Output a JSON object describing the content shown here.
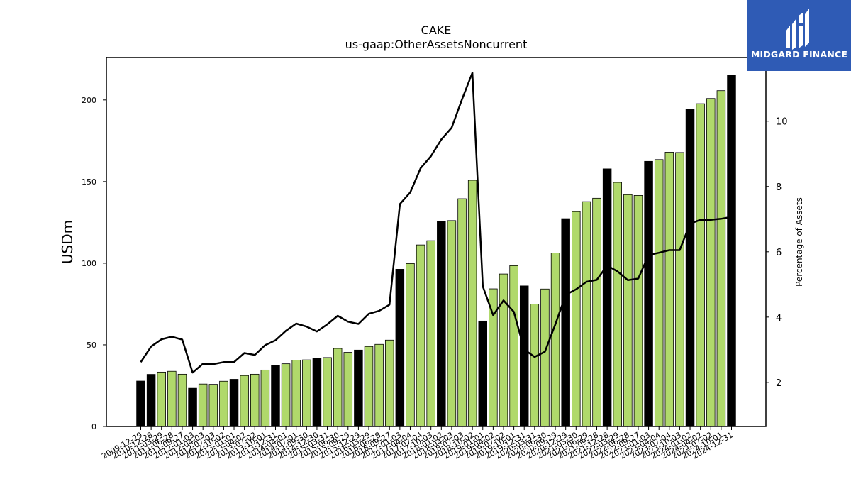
{
  "brand": {
    "name": "MIDGARD FINANCE",
    "icon": "midgard-logo-icon",
    "bg_color": "#2f5bb5"
  },
  "chart_data": {
    "type": "bar",
    "title": "CAKE",
    "subtitle": "us-gaap:OtherAssetsNoncurrent",
    "ylabel": "USDm",
    "y2label": "Percentage of Assets",
    "ylim": [
      0,
      226
    ],
    "y2lim": [
      0.65,
      11.95
    ],
    "yticks": [
      0,
      50,
      100,
      150,
      200
    ],
    "y2ticks": [
      2,
      4,
      6,
      8,
      10
    ],
    "grid": false,
    "legend": "none",
    "colors": {
      "annual_bar": "#000000",
      "quarter_bar": "#b0d96b",
      "bar_edge": "#000000",
      "line": "#000000"
    },
    "categories": [
      "2009-12-29",
      "2010-12-28",
      "2011-03-29",
      "2011-06-28",
      "2011-09-27",
      "2012-01-03",
      "2012-04-03",
      "2012-07-03",
      "2012-10-02",
      "2013-01-01",
      "2013-04-02",
      "2013-07-02",
      "2013-10-01",
      "2013-12-31",
      "2014-04-01",
      "2014-07-01",
      "2014-09-30",
      "2014-12-30",
      "2015-03-31",
      "2015-06-30",
      "2015-09-29",
      "2015-12-29",
      "2016-03-29",
      "2016-06-28",
      "2016-09-27",
      "2017-01-03",
      "2017-04-04",
      "2017-07-04",
      "2017-10-03",
      "2018-01-02",
      "2018-04-03",
      "2018-07-03",
      "2018-10-02",
      "2019-01-01",
      "2019-04-02",
      "2019-07-02",
      "2019-10-01",
      "2019-12-31",
      "2020-03-31",
      "2020-06-30",
      "2020-09-29",
      "2020-12-29",
      "2021-03-30",
      "2021-06-29",
      "2021-09-28",
      "2021-12-28",
      "2022-03-29",
      "2022-06-28",
      "2022-09-27",
      "2023-01-03",
      "2023-04-04",
      "2023-07-04",
      "2023-10-03",
      "2024-01-02",
      "2024-04-02",
      "2024-07-02",
      "2024-10-01",
      "2024-12-31"
    ],
    "xtick_labels": [
      "2009-12-29",
      "2010-12-28",
      "2011-03-29",
      "2011-06-28",
      "2011-09-27",
      "2012-01-03",
      "2012-04-03",
      "2012-07-03",
      "2012-10-02",
      "2013-01-01",
      "2013-04-02",
      "2013-07-02",
      "2013-10-01",
      "2013-12-31",
      "2014-04-01",
      "2014-07-01",
      "2014-09-30",
      "2014-12-30",
      "2015-03-31",
      "2015-06-30",
      "2015-09-29",
      "2015-12-29",
      "2016-03-29",
      "2016-06-28",
      "2016-09-27",
      "2017-01-03",
      "2017-04-04",
      "2017-07-04",
      "2017-10-03",
      "2018-01-02",
      "2018-04-03",
      "2018-07-03",
      "2018-10-02",
      "2019-01-01",
      "2019-04-02",
      "2019-07-02",
      "2019-10-01",
      "2019-12-31",
      "2020-03-31",
      "2020-06-30",
      "2020-09-29",
      "2020-12-29",
      "2021-03-30",
      "2021-06-29",
      "2021-09-28",
      "2021-12-28",
      "2022-03-29",
      "2022-06-28",
      "2022-09-27",
      "2023-01-03",
      "2023-04-04",
      "2023-07-04",
      "2023-10-03",
      "2024-01-02",
      "2024-04-02",
      "2024-07-02",
      "2024-10-01",
      "2024-12-31"
    ],
    "series": [
      {
        "kind": "bar",
        "values": [
          27.8,
          31.9,
          33.3,
          33.8,
          32.0,
          23.4,
          26.0,
          25.8,
          27.7,
          28.9,
          31.2,
          32.0,
          34.6,
          37.3,
          38.4,
          40.6,
          40.8,
          41.6,
          42.2,
          47.8,
          45.4,
          46.8,
          49.0,
          50.3,
          52.9,
          96.3,
          99.8,
          111.2,
          113.8,
          125.6,
          126.1,
          139.5,
          150.8,
          64.6,
          84.3,
          93.4,
          98.5,
          86.1,
          75.0,
          84.2,
          106.3,
          127.3,
          131.6,
          137.7,
          139.8,
          157.8,
          149.5,
          142.0,
          141.5,
          162.4,
          163.5,
          168.0,
          167.8,
          194.5,
          197.7,
          200.9,
          205.7,
          215.2
        ],
        "annual": [
          true,
          true,
          false,
          false,
          false,
          true,
          false,
          false,
          false,
          true,
          false,
          false,
          false,
          true,
          false,
          false,
          false,
          true,
          false,
          false,
          false,
          true,
          false,
          false,
          false,
          true,
          false,
          false,
          false,
          true,
          false,
          false,
          false,
          true,
          false,
          false,
          false,
          true,
          false,
          false,
          false,
          true,
          false,
          false,
          false,
          true,
          false,
          false,
          false,
          true,
          false,
          false,
          false,
          true,
          false,
          false,
          false,
          true
        ]
      },
      {
        "kind": "line",
        "axis": "right",
        "values": [
          2.62,
          3.1,
          3.32,
          3.4,
          3.31,
          2.3,
          2.57,
          2.56,
          2.62,
          2.62,
          2.9,
          2.84,
          3.14,
          3.29,
          3.58,
          3.8,
          3.71,
          3.56,
          3.78,
          4.04,
          3.86,
          3.79,
          4.1,
          4.19,
          4.38,
          7.46,
          7.82,
          8.56,
          8.93,
          9.44,
          9.8,
          10.67,
          11.48,
          4.94,
          4.06,
          4.51,
          4.16,
          3.01,
          2.78,
          2.94,
          3.78,
          4.68,
          4.85,
          5.08,
          5.14,
          5.58,
          5.4,
          5.13,
          5.18,
          5.9,
          5.97,
          6.05,
          6.05,
          6.86,
          6.98,
          6.98,
          7.01,
          7.07
        ]
      }
    ]
  }
}
